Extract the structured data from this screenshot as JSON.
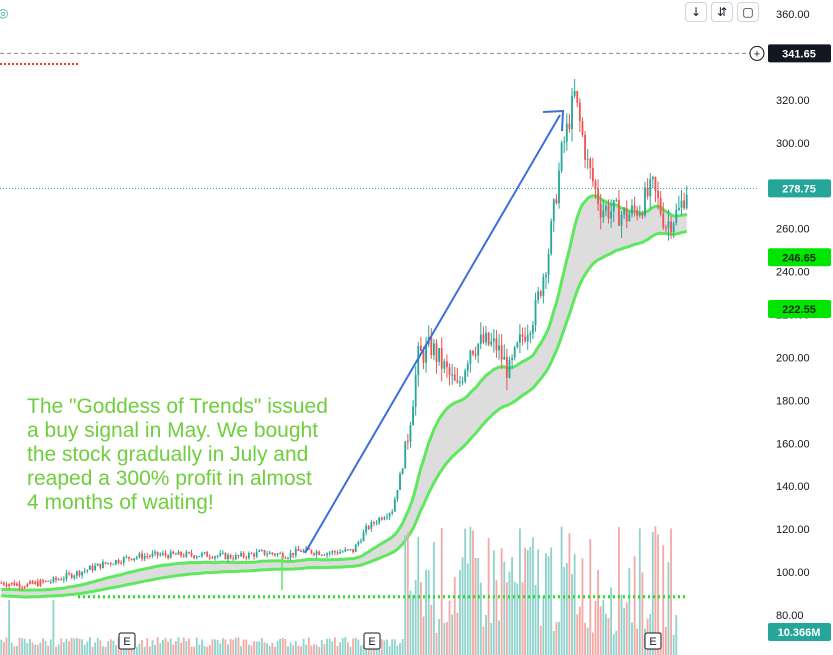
{
  "toolbar": {
    "download_icon": "arrow-down-icon",
    "collapse_icon": "collapse-icon",
    "fullscreen_icon": "rectangle-icon"
  },
  "annotation": {
    "text": "The \"Goddess of Trends\" issued\na buy signal in May. We bought\nthe stock gradually in July and\nreaped a 300% profit in almost\n4 months of waiting!"
  },
  "colors": {
    "up": "#26a69a",
    "down": "#ef5350",
    "band_line": "#5ee85e",
    "band_fill": "#d9d9d9",
    "arrow": "#3d6fd9",
    "annotation": "#6fce3c",
    "price_line": "#26a69a",
    "support_dots": "#22dd22"
  },
  "chart_data": {
    "type": "candlestick",
    "yaxis": {
      "ticks": [
        "360.00",
        "320.00",
        "300.00",
        "280.00",
        "260.00",
        "240.00",
        "220.00",
        "200.00",
        "180.00",
        "160.00",
        "140.00",
        "120.00",
        "100.00",
        "80.00"
      ],
      "ylim": [
        77,
        362
      ]
    },
    "price_tags": [
      {
        "label": "341.65",
        "value": 341.65,
        "style": "dark",
        "icon": "plus-circle-icon"
      },
      {
        "label": "278.75",
        "value": 278.75,
        "style": "teal"
      },
      {
        "label": "246.65",
        "value": 246.65,
        "style": "green"
      },
      {
        "label": "222.55",
        "value": 222.55,
        "style": "green"
      },
      {
        "label": "10.366M",
        "style": "teal"
      }
    ],
    "reference_lines": {
      "dashed_high": 341.65,
      "last_price": 278.75,
      "support": 88.5
    },
    "earnings_markers": [
      "E",
      "E",
      "E"
    ],
    "price_path": [
      [
        0,
        95
      ],
      [
        10,
        94
      ],
      [
        20,
        96
      ],
      [
        30,
        100
      ],
      [
        40,
        104
      ],
      [
        50,
        107
      ],
      [
        60,
        108
      ],
      [
        70,
        108
      ],
      [
        80,
        108
      ],
      [
        90,
        107
      ],
      [
        100,
        109
      ],
      [
        110,
        108
      ],
      [
        115,
        110
      ],
      [
        125,
        109
      ],
      [
        135,
        110
      ],
      [
        140,
        120
      ],
      [
        145,
        125
      ],
      [
        150,
        129
      ],
      [
        155,
        155
      ],
      [
        160,
        200
      ],
      [
        165,
        205
      ],
      [
        170,
        195
      ],
      [
        175,
        185
      ],
      [
        180,
        205
      ],
      [
        185,
        207
      ],
      [
        190,
        205
      ],
      [
        195,
        193
      ],
      [
        200,
        210
      ],
      [
        205,
        222
      ],
      [
        210,
        250
      ],
      [
        215,
        295
      ],
      [
        220,
        322
      ],
      [
        225,
        290
      ],
      [
        230,
        270
      ],
      [
        235,
        268
      ],
      [
        240,
        266
      ],
      [
        245,
        270
      ],
      [
        250,
        279
      ],
      [
        255,
        262
      ],
      [
        260,
        268
      ],
      [
        263,
        278.75
      ]
    ],
    "volume": [
      2,
      1,
      1,
      1,
      1,
      1,
      1,
      1,
      1,
      1,
      1,
      1,
      1,
      1,
      1,
      1,
      1,
      1,
      1,
      1,
      1,
      2,
      1,
      1,
      1,
      1,
      1,
      1,
      1,
      1,
      1,
      1,
      1,
      1,
      1,
      1,
      1,
      1,
      1,
      1,
      1,
      1,
      1,
      1,
      1,
      1,
      1,
      1,
      1,
      1,
      1,
      1,
      1,
      1,
      1,
      1,
      1,
      1,
      1,
      1,
      1,
      1,
      1,
      1,
      1,
      1,
      1,
      1,
      1,
      1,
      1,
      1,
      1,
      1,
      1,
      1,
      1,
      1,
      1,
      1,
      1,
      1,
      1,
      1,
      1,
      1,
      1,
      1,
      1,
      1,
      1,
      1,
      1,
      1,
      1,
      1,
      1,
      1,
      1,
      1,
      1,
      1,
      1,
      1,
      1,
      1,
      1,
      1,
      1,
      1,
      1,
      1,
      1,
      1,
      1,
      1,
      1,
      1,
      1,
      1,
      1,
      1,
      1,
      1,
      1,
      1,
      1,
      1,
      1,
      1,
      1,
      1,
      1,
      1,
      1,
      1,
      1,
      1,
      1,
      1,
      1,
      1,
      1,
      1,
      1,
      1,
      1,
      1,
      1,
      1,
      1,
      1,
      2,
      1,
      1,
      1,
      1,
      1,
      1,
      1,
      1,
      1,
      1,
      1,
      1,
      1,
      1,
      1,
      1,
      1,
      1,
      1,
      1,
      1,
      1,
      1,
      1,
      1,
      1,
      1,
      1,
      1,
      1,
      1,
      1,
      1,
      1,
      1,
      1,
      1,
      1,
      1,
      1,
      1,
      1,
      1,
      1,
      1,
      1,
      1,
      1,
      1,
      1,
      1,
      1,
      1,
      1,
      1,
      1,
      1,
      1,
      1,
      1,
      1,
      1,
      1,
      1,
      1,
      1,
      1,
      1,
      1,
      1,
      1,
      1,
      1,
      1,
      1,
      1,
      1,
      1,
      1,
      1,
      1,
      1,
      1,
      1,
      1,
      1,
      1,
      1,
      1,
      1,
      1,
      1,
      1,
      1,
      1,
      1,
      1,
      1,
      1,
      1,
      1,
      1,
      1,
      1,
      1,
      1,
      1
    ]
  }
}
